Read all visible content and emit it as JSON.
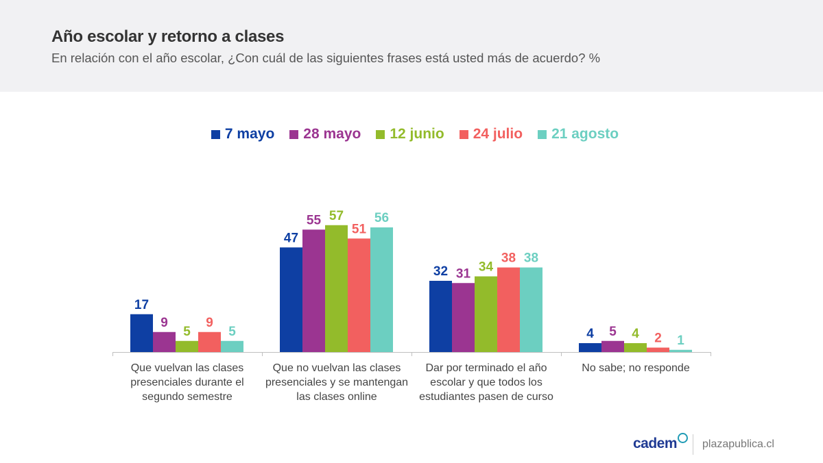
{
  "header": {
    "title": "Año escolar y retorno a clases",
    "subtitle": "En relación con el año escolar, ¿Con cuál de las siguientes frases está usted más de acuerdo? %"
  },
  "footer": {
    "brand": "cadem",
    "site": "plazapublica.cl"
  },
  "colors": {
    "7 mayo": "#0e3fa3",
    "28 mayo": "#9b3591",
    "12 junio": "#93bb2b",
    "24 julio": "#f2605f",
    "21 agosto": "#6ccfc1"
  },
  "chart_data": {
    "type": "bar",
    "title": "Año escolar y retorno a clases",
    "ylim": [
      0,
      60
    ],
    "grid": false,
    "legend_position": "top-center",
    "categories": [
      [
        "Que vuelvan las clases",
        "presenciales durante el",
        "segundo semestre"
      ],
      [
        "Que no vuelvan las clases",
        "presenciales y se mantengan",
        "las clases online"
      ],
      [
        "Dar por terminado el año",
        "escolar y que todos los",
        "estudiantes pasen de curso"
      ],
      [
        "No sabe; no responde"
      ]
    ],
    "series": [
      {
        "name": "7 mayo",
        "color": "#0e3fa3",
        "values": [
          17,
          47,
          32,
          4
        ]
      },
      {
        "name": "28 mayo",
        "color": "#9b3591",
        "values": [
          9,
          55,
          31,
          5
        ]
      },
      {
        "name": "12 junio",
        "color": "#93bb2b",
        "values": [
          5,
          57,
          34,
          4
        ]
      },
      {
        "name": "24 julio",
        "color": "#f2605f",
        "values": [
          9,
          51,
          38,
          2
        ]
      },
      {
        "name": "21 agosto",
        "color": "#6ccfc1",
        "values": [
          5,
          56,
          38,
          1
        ]
      }
    ]
  }
}
